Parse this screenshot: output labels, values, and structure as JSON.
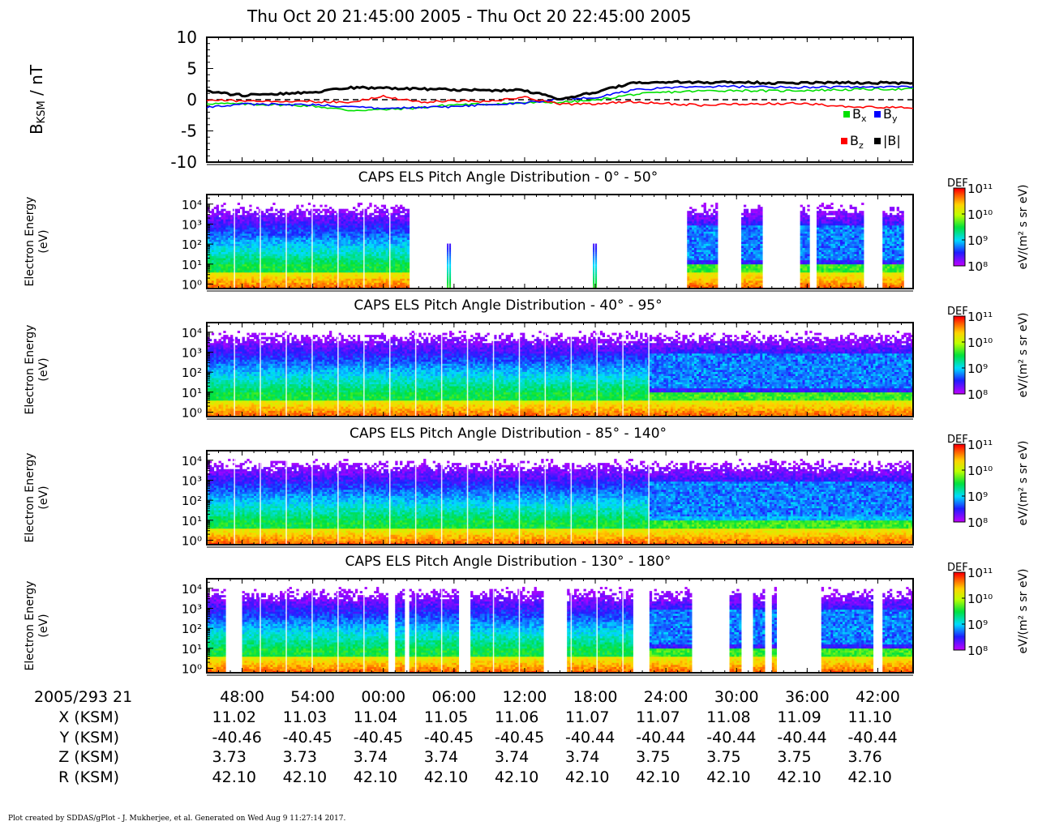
{
  "title": "Thu Oct 20 21:45:00 2005 - Thu Oct 20 22:45:00 2005",
  "footer": "Plot created by SDDAS/gPlot - J. Mukherjee, et al.  Generated on Wed Aug 9 11:27:14 2017.",
  "chart_data": [
    {
      "type": "line",
      "ylabel": "B_KSM / nT",
      "ylabel_main": "B",
      "ylabel_sub": "KSM",
      "ylabel_tail": " / nT",
      "ylim": [
        -10,
        10
      ],
      "yticks": [
        "10",
        "5",
        "0",
        "-5",
        "-10"
      ],
      "ytick_values": [
        10,
        5,
        0,
        -5,
        -10
      ],
      "x": [
        0,
        3,
        6,
        9,
        12,
        15,
        18,
        21,
        24,
        27,
        30,
        33,
        36,
        39,
        42,
        45,
        48,
        51,
        54,
        57,
        60
      ],
      "series": [
        {
          "name": "Bx",
          "label_main": "B",
          "label_sub": "x",
          "color": "#00e000",
          "values": [
            -0.6,
            -0.7,
            -0.8,
            -1.0,
            -1.7,
            -1.6,
            -1.3,
            -0.8,
            -0.7,
            -0.5,
            -0.4,
            -0.1,
            0.8,
            1.2,
            1.4,
            1.5,
            1.4,
            1.5,
            1.6,
            1.7,
            1.7
          ]
        },
        {
          "name": "By",
          "label_main": "B",
          "label_sub": "y",
          "color": "#0000ff",
          "values": [
            -1.2,
            -0.7,
            -0.8,
            -0.8,
            -1.1,
            -1.4,
            -1.3,
            -1.1,
            -0.8,
            -0.5,
            0.1,
            0.3,
            1.5,
            1.9,
            2.1,
            2.1,
            2.0,
            2.0,
            2.0,
            2.0,
            2.1
          ]
        },
        {
          "name": "Bz",
          "label_main": "B",
          "label_sub": "z",
          "color": "#ff0000",
          "values": [
            0.0,
            -0.2,
            -0.2,
            -0.3,
            -0.4,
            0.5,
            -0.4,
            -0.2,
            -0.3,
            0.4,
            -0.7,
            -0.7,
            -0.3,
            -0.6,
            -0.9,
            -0.7,
            -0.6,
            -0.6,
            -1.1,
            -1.2,
            -1.3
          ]
        },
        {
          "name": "|B|",
          "label_main": "|B|",
          "label_sub": "",
          "color": "#000000",
          "values": [
            1.3,
            0.7,
            0.9,
            1.2,
            1.9,
            1.9,
            1.7,
            1.6,
            1.5,
            1.5,
            0.1,
            1.2,
            2.6,
            2.8,
            2.8,
            2.8,
            2.7,
            2.7,
            2.7,
            2.7,
            2.7
          ]
        }
      ],
      "reference_line": {
        "y": 0,
        "style": "dashed"
      },
      "legend": "bottom-right"
    },
    {
      "type": "heatmap",
      "title": "CAPS ELS Pitch Angle Distribution - 0° - 50°",
      "ylabel": [
        "Electron Energy",
        "(eV)"
      ],
      "yscale": "log",
      "ylim": [
        0.6,
        30000
      ],
      "yticks": [
        "10⁰",
        "10¹",
        "10²",
        "10³",
        "10⁴"
      ],
      "colorbar": {
        "label": "DEF",
        "unit": "eV/(m² s sr eV)",
        "ticks": [
          "10⁸",
          "10⁹",
          "10¹⁰",
          "10¹¹"
        ],
        "range_log": [
          8,
          11
        ]
      },
      "gaps": [
        [
          17.2,
          40.9
        ],
        [
          43.5,
          45.4
        ],
        [
          47.3,
          50.4
        ],
        [
          51.3,
          51.8
        ],
        [
          55.8,
          57.5
        ],
        [
          59.2,
          60
        ]
      ],
      "spikes": [
        20.6,
        33.0
      ],
      "pattern": "hot low-energy core below 10 eV, broad 10-1000 eV population; patchy sparse bursts after 24:00"
    },
    {
      "type": "heatmap",
      "title": "CAPS ELS Pitch Angle Distribution - 40° - 95°",
      "ylabel": [
        "Electron Energy",
        "(eV)"
      ],
      "yscale": "log",
      "ylim": [
        0.6,
        30000
      ],
      "yticks": [
        "10⁰",
        "10¹",
        "10²",
        "10³",
        "10⁴"
      ],
      "colorbar": {
        "label": "DEF",
        "unit": "eV/(m² s sr eV)",
        "ticks": [
          "10⁸",
          "10⁹",
          "10¹⁰",
          "10¹¹"
        ],
        "range_log": [
          8,
          11
        ]
      },
      "gaps": [],
      "pattern": "continuous coverage; boundary crossing near 22:23 with hotter population afterwards"
    },
    {
      "type": "heatmap",
      "title": "CAPS ELS Pitch Angle Distribution - 85° - 140°",
      "ylabel": [
        "Electron Energy",
        "(eV)"
      ],
      "yscale": "log",
      "ylim": [
        0.6,
        30000
      ],
      "yticks": [
        "10⁰",
        "10¹",
        "10²",
        "10³",
        "10⁴"
      ],
      "colorbar": {
        "label": "DEF",
        "unit": "eV/(m² s sr eV)",
        "ticks": [
          "10⁸",
          "10⁹",
          "10¹⁰",
          "10¹¹"
        ],
        "range_log": [
          8,
          11
        ]
      },
      "gaps": [],
      "pattern": "continuous coverage; dense 10-300 eV population until ~22:22, then hot sparse population"
    },
    {
      "type": "heatmap",
      "title": "CAPS ELS Pitch Angle Distribution - 130° - 180°",
      "ylabel": [
        "Electron Energy",
        "(eV)"
      ],
      "yscale": "log",
      "ylim": [
        0.6,
        30000
      ],
      "yticks": [
        "10⁰",
        "10¹",
        "10²",
        "10³",
        "10⁴"
      ],
      "colorbar": {
        "label": "DEF",
        "unit": "eV/(m² s sr eV)",
        "ticks": [
          "10⁸",
          "10⁹",
          "10¹⁰",
          "10¹¹"
        ],
        "range_log": [
          8,
          11
        ]
      },
      "gaps": [
        [
          1.6,
          3.0
        ],
        [
          15.5,
          16.0
        ],
        [
          16.9,
          17.2
        ],
        [
          21.3,
          22.5
        ],
        [
          28.7,
          30.6
        ],
        [
          36.3,
          37.6
        ],
        [
          41.3,
          44.5
        ],
        [
          45.5,
          46.5
        ],
        [
          47.5,
          48.1
        ],
        [
          48.5,
          52.2
        ],
        [
          56.6,
          57.5
        ]
      ],
      "pattern": "broad population with data gaps; hot bursts after 24:00"
    }
  ],
  "time_axis": {
    "start_label": "2005/293 21",
    "ticks": [
      "48:00",
      "54:00",
      "00:00",
      "06:00",
      "12:00",
      "18:00",
      "24:00",
      "30:00",
      "36:00",
      "42:00"
    ],
    "tick_minutes": [
      3,
      9,
      15,
      21,
      27,
      33,
      39,
      45,
      51,
      57
    ],
    "range_minutes": [
      0,
      60
    ]
  },
  "ephemeris": [
    {
      "label": "X (KSM)",
      "values": [
        "11.02",
        "11.03",
        "11.04",
        "11.05",
        "11.06",
        "11.07",
        "11.07",
        "11.08",
        "11.09",
        "11.10"
      ]
    },
    {
      "label": "Y (KSM)",
      "values": [
        "-40.46",
        "-40.45",
        "-40.45",
        "-40.45",
        "-40.45",
        "-40.44",
        "-40.44",
        "-40.44",
        "-40.44",
        "-40.44"
      ]
    },
    {
      "label": "Z (KSM)",
      "values": [
        "3.73",
        "3.73",
        "3.74",
        "3.74",
        "3.74",
        "3.74",
        "3.75",
        "3.75",
        "3.75",
        "3.76"
      ]
    },
    {
      "label": "R (KSM)",
      "values": [
        "42.10",
        "42.10",
        "42.10",
        "42.10",
        "42.10",
        "42.10",
        "42.10",
        "42.10",
        "42.10",
        "42.10"
      ]
    }
  ]
}
